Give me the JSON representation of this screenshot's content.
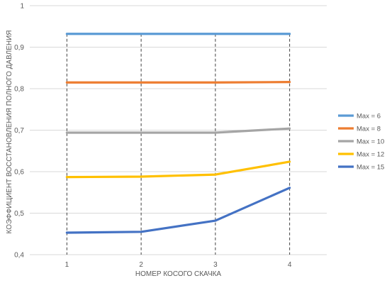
{
  "chart_data": {
    "type": "line",
    "title": "",
    "xlabel": "НОМЕР КОСОГО СКАЧКА",
    "ylabel": "КОЭФФИЦИЕНТ ВОССТАНОВЛЕНИЯ ПОЛНОГО ДАВЛЕНИЯ",
    "categories": [
      "1",
      "2",
      "3",
      "4"
    ],
    "ylim": [
      0.4,
      1
    ],
    "yticks": [
      1,
      0.9,
      0.8,
      0.7,
      0.6,
      0.5,
      0.4
    ],
    "ytick_labels": [
      "1",
      "0,9",
      "0,8",
      "0,7",
      "0,6",
      "0,5",
      "0,4"
    ],
    "grid": "horizontal",
    "drop_lines": true,
    "legend_position": "right",
    "series": [
      {
        "name": "Max = 6",
        "color": "#5B9BD5",
        "values": [
          0.932,
          0.932,
          0.932,
          0.932
        ]
      },
      {
        "name": "Max = 8",
        "color": "#ED7D31",
        "values": [
          0.815,
          0.815,
          0.815,
          0.816
        ]
      },
      {
        "name": "Max = 10",
        "color": "#A5A5A5",
        "values": [
          0.694,
          0.694,
          0.694,
          0.704
        ]
      },
      {
        "name": "Max = 12",
        "color": "#FFC000",
        "values": [
          0.587,
          0.588,
          0.593,
          0.624
        ]
      },
      {
        "name": "Max = 15",
        "color": "#4472C4",
        "values": [
          0.453,
          0.455,
          0.482,
          0.561
        ]
      }
    ]
  }
}
